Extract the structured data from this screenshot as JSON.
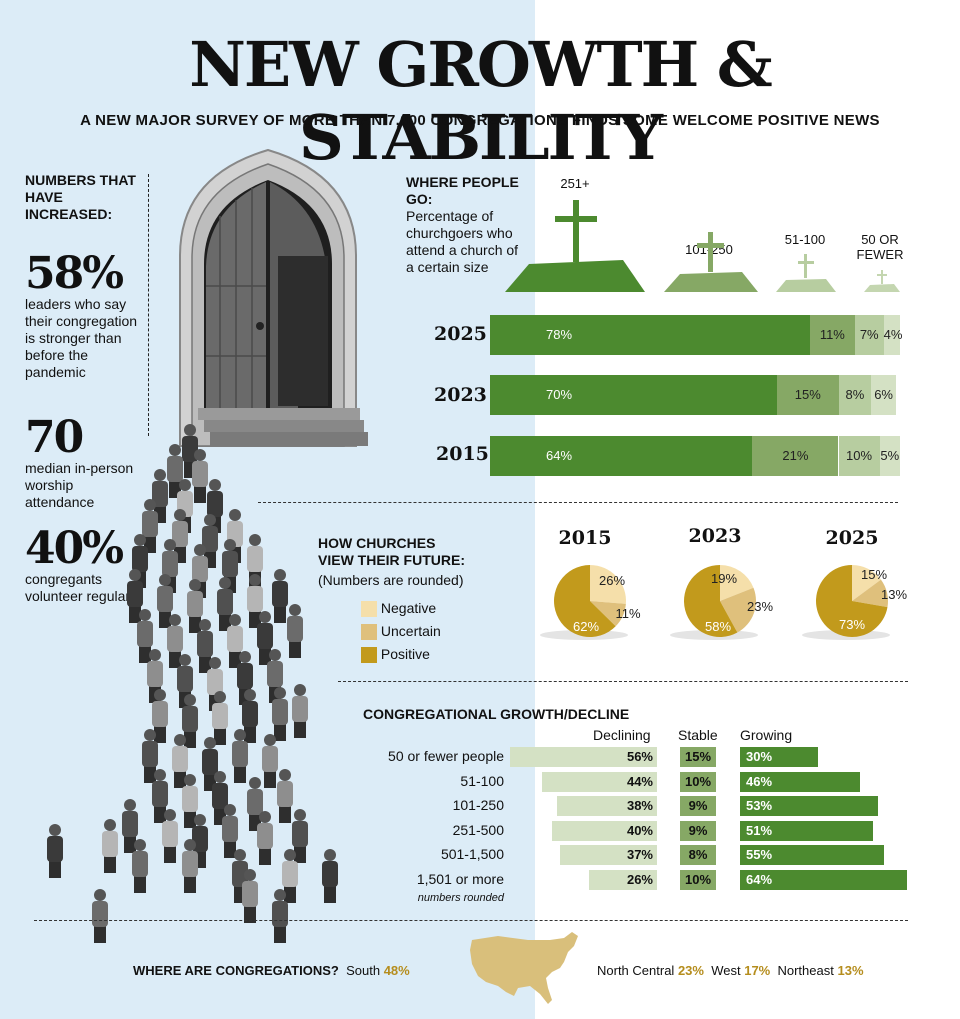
{
  "title": "NEW GROWTH & STABILITY",
  "subtitle": "A NEW MAJOR SURVEY OF MORE THAN 7,000 CONGREGATIONS FINDS SOME WELCOME POSITIVE NEWS",
  "increased": {
    "heading": "NUMBERS THAT HAVE INCREASED:",
    "stats": [
      {
        "value": "58%",
        "desc": "leaders who say their con­gregation is stronger than before the pandemic"
      },
      {
        "value": "70",
        "desc": "median in-per­son worship attendance"
      },
      {
        "value": "40%",
        "desc": "congregants volunteer regularly"
      }
    ]
  },
  "where_people_go": {
    "heading": "WHERE PEOPLE GO:",
    "text": "Percentage of churchgoers who attend a church of a certain size",
    "size_labels": [
      "251+",
      "101-250",
      "51-100",
      "50 OR FEWER"
    ]
  },
  "colors": {
    "dark_green": "#4c8a2f",
    "mid_green": "#86a865",
    "light_green": "#b7cda0",
    "pale_green": "#d4e1c4",
    "neg": "#f5dfaa",
    "unc": "#dfc07c",
    "pos": "#c29a1c",
    "map": "#d9bf7b",
    "gold_text": "#b58d1d"
  },
  "chart_data": [
    {
      "type": "bar",
      "orientation": "horizontal",
      "stacked": true,
      "categories": [
        "2025",
        "2023",
        "2015"
      ],
      "series": [
        {
          "name": "251+",
          "values": [
            78,
            70,
            64
          ],
          "labels": [
            "78%",
            "70%",
            "64%"
          ]
        },
        {
          "name": "101-250",
          "values": [
            11,
            15,
            21
          ],
          "labels": [
            "11%",
            "15%",
            "21%"
          ]
        },
        {
          "name": "51-100",
          "values": [
            7,
            8,
            10
          ],
          "labels": [
            "7%",
            "8%",
            "10%"
          ]
        },
        {
          "name": "50 OR FEWER",
          "values": [
            4,
            6,
            5
          ],
          "labels": [
            "4%",
            "6%",
            "5%"
          ]
        }
      ]
    },
    {
      "type": "pie",
      "title": "HOW CHURCHES VIEW THEIR FUTURE:",
      "subtitle": "(Numbers are rounded)",
      "legend": [
        "Negative",
        "Uncertain",
        "Positive"
      ],
      "pies": [
        {
          "year": "2015",
          "values": [
            26,
            11,
            62
          ],
          "labels": [
            "26%",
            "11%",
            "62%"
          ]
        },
        {
          "year": "2023",
          "values": [
            19,
            23,
            58
          ],
          "labels": [
            "19%",
            "23%",
            "58%"
          ]
        },
        {
          "year": "2025",
          "values": [
            15,
            13,
            73
          ],
          "labels": [
            "15%",
            "13%",
            "73%"
          ]
        }
      ]
    },
    {
      "type": "bar",
      "orientation": "horizontal",
      "title": "CONGREGATIONAL GROWTH/DECLINE",
      "columns": [
        "Declining",
        "Stable",
        "Growing"
      ],
      "categories": [
        "50 or fewer people",
        "51-100",
        "101-250",
        "251-500",
        "501-1,500",
        "1,501 or more"
      ],
      "declining": [
        56,
        44,
        38,
        40,
        37,
        26
      ],
      "stable": [
        15,
        10,
        9,
        9,
        8,
        10
      ],
      "growing": [
        30,
        46,
        53,
        51,
        55,
        64
      ],
      "note": "numbers rounded"
    }
  ],
  "regions": {
    "heading": "WHERE ARE CONGREGATIONS?",
    "items": [
      {
        "name": "South",
        "value": "48%"
      },
      {
        "name": "North Central",
        "value": "23%"
      },
      {
        "name": "West",
        "value": "17%"
      },
      {
        "name": "Northeast",
        "value": "13%"
      }
    ]
  }
}
